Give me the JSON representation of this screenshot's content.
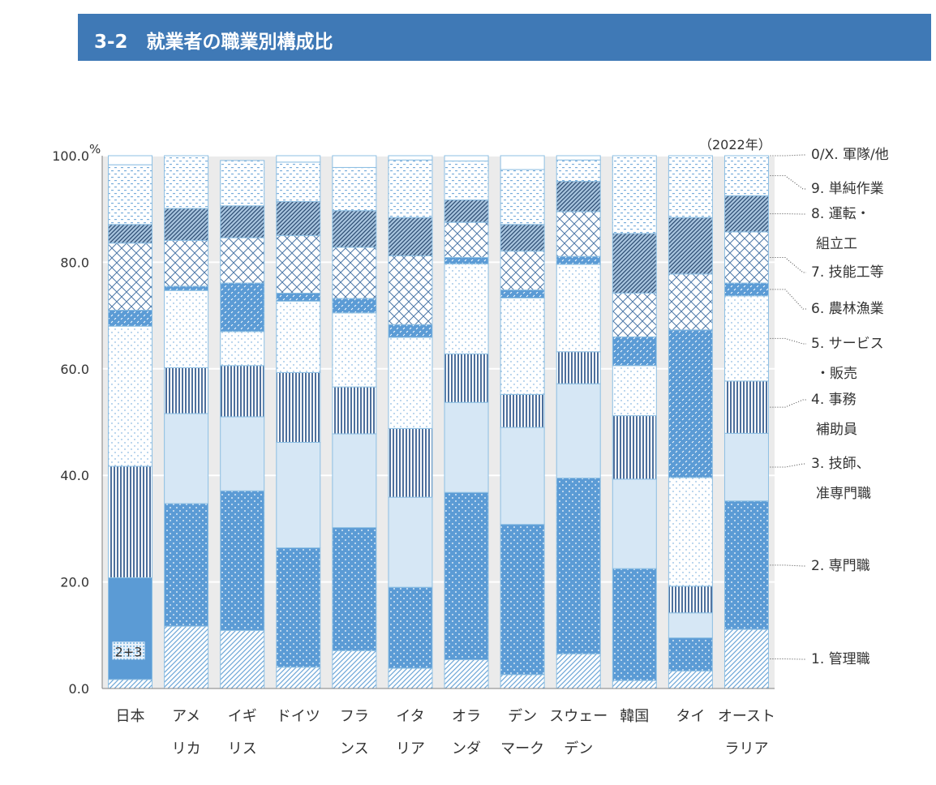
{
  "header": {
    "title": "3-2　就業者の職業別構成比"
  },
  "chart_data": {
    "type": "bar",
    "stacked": true,
    "ylabel": "%",
    "ylim": [
      0,
      100
    ],
    "yticks": [
      "0.0",
      "20.0",
      "40.0",
      "60.0",
      "80.0",
      "100.0"
    ],
    "year_note": "（2022年）",
    "categories": [
      [
        "日本"
      ],
      [
        "アメ",
        "リカ"
      ],
      [
        "イギ",
        "リス"
      ],
      [
        "ドイツ"
      ],
      [
        "フラ",
        "ンス"
      ],
      [
        "イタ",
        "リア"
      ],
      [
        "オラ",
        "ンダ"
      ],
      [
        "デン",
        "マーク"
      ],
      [
        "スウェー",
        "デン"
      ],
      [
        "韓国"
      ],
      [
        "タイ"
      ],
      [
        "オースト",
        "ラリア"
      ]
    ],
    "series": [
      {
        "name": [
          "1. 管理職"
        ],
        "values": [
          1.7,
          11.7,
          10.9,
          4.0,
          7.1,
          3.8,
          5.4,
          2.6,
          6.5,
          1.5,
          3.3,
          11.1
        ]
      },
      {
        "name": [
          "2. 専門職"
        ],
        "values": [
          0,
          23.0,
          26.2,
          22.4,
          23.1,
          15.2,
          31.4,
          28.2,
          33.0,
          21.0,
          6.2,
          24.1
        ]
      },
      {
        "name": [
          "3. 技師、",
          "准専門職"
        ],
        "values": [
          19.1,
          16.9,
          13.9,
          19.8,
          17.6,
          16.9,
          16.9,
          18.2,
          17.7,
          16.8,
          4.7,
          12.7
        ]
      },
      {
        "name": [
          "4. 事務",
          "補助員"
        ],
        "values": [
          20.9,
          8.6,
          9.6,
          13.1,
          8.8,
          12.9,
          9.1,
          6.2,
          6.0,
          11.9,
          5.0,
          9.8
        ]
      },
      {
        "name": [
          "5. サービス",
          "・販売"
        ],
        "values": [
          26.3,
          14.5,
          6.4,
          13.4,
          13.9,
          17.1,
          16.9,
          18.1,
          16.4,
          9.4,
          20.4,
          16.0
        ]
      },
      {
        "name": [
          "6. 農林漁業"
        ],
        "values": [
          3.0,
          0.8,
          9.1,
          1.5,
          2.7,
          2.4,
          1.2,
          1.5,
          1.5,
          5.4,
          27.7,
          2.4
        ]
      },
      {
        "name": [
          "7. 技能工等"
        ],
        "values": [
          12.6,
          8.6,
          8.5,
          10.8,
          9.6,
          12.9,
          6.6,
          7.3,
          8.4,
          8.2,
          10.5,
          9.6
        ]
      },
      {
        "name": [
          "8. 運転・",
          "組立工"
        ],
        "values": [
          3.5,
          6.0,
          6.0,
          6.4,
          6.9,
          7.2,
          4.2,
          5.0,
          5.7,
          11.2,
          10.6,
          6.8
        ]
      },
      {
        "name": [
          "9. 単純作業"
        ],
        "values": [
          11.2,
          9.9,
          8.5,
          7.4,
          8.1,
          10.8,
          7.3,
          10.3,
          4.0,
          14.6,
          11.6,
          7.5
        ]
      },
      {
        "name": [
          "0/X. 軍隊/他"
        ],
        "values": [
          1.7,
          0.0,
          0.0,
          1.2,
          2.2,
          0.8,
          1.0,
          2.6,
          0.8,
          0.0,
          0.0,
          0.0
        ]
      }
    ],
    "annotation": {
      "label": "2+3",
      "category": "日本",
      "value": 19.1
    },
    "colors": {
      "bg": "#ebebeb",
      "axis": "#7f7f7f",
      "border": "#8dbfe3",
      "gap": "#ffffff",
      "text": "#333333",
      "dotted_leader": "#444444"
    }
  }
}
